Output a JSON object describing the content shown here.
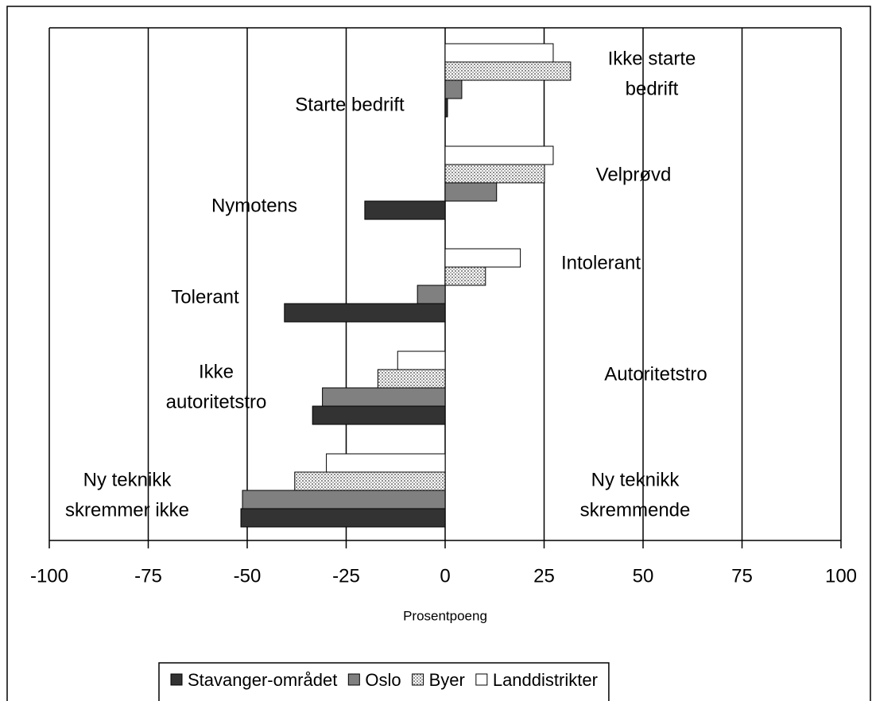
{
  "chart_data": {
    "type": "bar",
    "orientation": "horizontal",
    "xlabel": "Prosentpoeng",
    "xlim": [
      -100,
      100
    ],
    "xticks": [
      -100,
      -75,
      -50,
      -25,
      0,
      25,
      50,
      75,
      100
    ],
    "grid": true,
    "left_labels": [
      [
        "Starte bedrift"
      ],
      [
        "Nymotens"
      ],
      [
        "Tolerant"
      ],
      [
        "Ikke",
        "autoritetstro"
      ],
      [
        "Ny teknikk",
        "skremmer ikke"
      ]
    ],
    "right_labels": [
      [
        "Ikke starte",
        "bedrift"
      ],
      [
        "Velprøvd"
      ],
      [
        "Intolerant"
      ],
      [
        "Autoritetstro"
      ],
      [
        "Ny teknikk",
        "skremmende"
      ]
    ],
    "legend": "bottom",
    "series": [
      {
        "name": "Stavanger-området",
        "color": "#333333",
        "values": [
          0.6,
          -20.3,
          -40.6,
          -33.5,
          -51.6
        ]
      },
      {
        "name": "Oslo",
        "color": "#808080",
        "values": [
          4.2,
          13,
          -7,
          -31,
          -51.2
        ]
      },
      {
        "name": "Byer",
        "color": "#c8c8c8",
        "pattern": "dotted",
        "values": [
          31.7,
          25.1,
          10.2,
          -17,
          -38
        ]
      },
      {
        "name": "Landdistrikter",
        "color": "#ffffff",
        "values": [
          27.3,
          27.3,
          19,
          -12,
          -30
        ]
      }
    ]
  }
}
